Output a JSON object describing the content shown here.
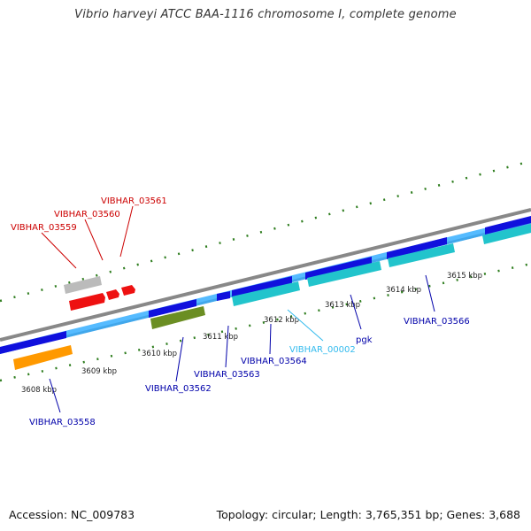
{
  "title": "Vibrio harveyi ATCC BAA-1116 chromosome I, complete genome",
  "footer": {
    "accession": "Accession: NC_009783",
    "stats": "Topology: circular; Length: 3,765,351 bp; Genes: 3,688"
  },
  "colors": {
    "backbone": "#888888",
    "cds_forward": "#1010dd",
    "cds_strand_band": "#55bbff",
    "cds_reverse": "#22c4cc",
    "tick": "#2e7d1e",
    "label_forward": "#cc0000",
    "label_reverse": "#0000aa",
    "label_other": "#33bbee"
  },
  "scale_labels": [
    "3608 kbp",
    "3609 kbp",
    "3610 kbp",
    "3611 kbp",
    "3612 kbp",
    "3613 kbp",
    "3614 kbp",
    "3615 kbp"
  ],
  "genes_top": [
    "VIBHAR_03559",
    "VIBHAR_03560",
    "VIBHAR_03561"
  ],
  "genes_bottom": [
    "VIBHAR_03558",
    "VIBHAR_03562",
    "VIBHAR_03563",
    "VIBHAR_03564",
    "VIBHAR_00002",
    "pgk",
    "VIBHAR_03566"
  ]
}
